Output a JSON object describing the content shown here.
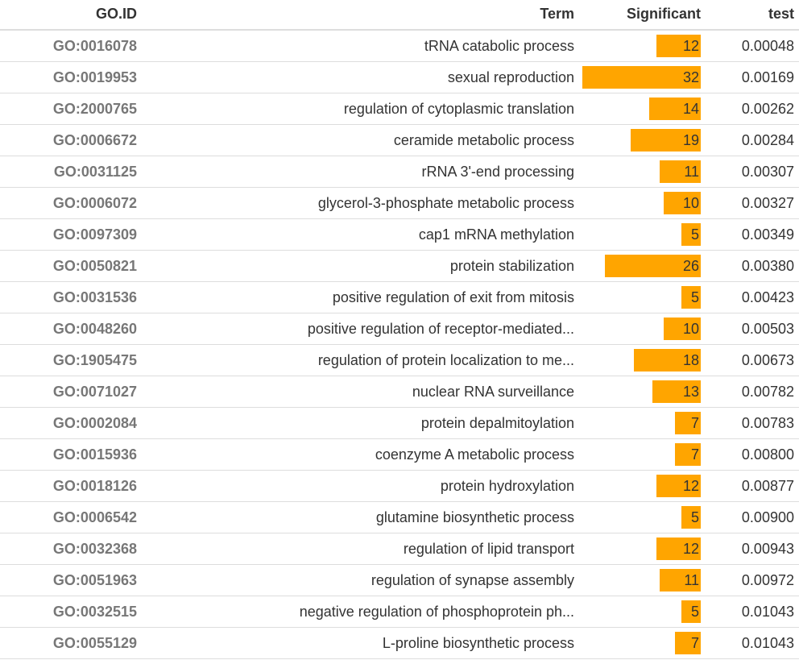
{
  "columns": {
    "goid": "GO.ID",
    "term": "Term",
    "significant": "Significant",
    "test": "test"
  },
  "bar_color": "#ffa500",
  "significant_max": 32,
  "rows": [
    {
      "goid": "GO:0016078",
      "term": "tRNA catabolic process",
      "significant": 12,
      "test": "0.00048"
    },
    {
      "goid": "GO:0019953",
      "term": "sexual reproduction",
      "significant": 32,
      "test": "0.00169"
    },
    {
      "goid": "GO:2000765",
      "term": "regulation of cytoplasmic translation",
      "significant": 14,
      "test": "0.00262"
    },
    {
      "goid": "GO:0006672",
      "term": "ceramide metabolic process",
      "significant": 19,
      "test": "0.00284"
    },
    {
      "goid": "GO:0031125",
      "term": "rRNA 3'-end processing",
      "significant": 11,
      "test": "0.00307"
    },
    {
      "goid": "GO:0006072",
      "term": "glycerol-3-phosphate metabolic process",
      "significant": 10,
      "test": "0.00327"
    },
    {
      "goid": "GO:0097309",
      "term": "cap1 mRNA methylation",
      "significant": 5,
      "test": "0.00349"
    },
    {
      "goid": "GO:0050821",
      "term": "protein stabilization",
      "significant": 26,
      "test": "0.00380"
    },
    {
      "goid": "GO:0031536",
      "term": "positive regulation of exit from mitosis",
      "significant": 5,
      "test": "0.00423"
    },
    {
      "goid": "GO:0048260",
      "term": "positive regulation of receptor-mediated...",
      "significant": 10,
      "test": "0.00503"
    },
    {
      "goid": "GO:1905475",
      "term": "regulation of protein localization to me...",
      "significant": 18,
      "test": "0.00673"
    },
    {
      "goid": "GO:0071027",
      "term": "nuclear RNA surveillance",
      "significant": 13,
      "test": "0.00782"
    },
    {
      "goid": "GO:0002084",
      "term": "protein depalmitoylation",
      "significant": 7,
      "test": "0.00783"
    },
    {
      "goid": "GO:0015936",
      "term": "coenzyme A metabolic process",
      "significant": 7,
      "test": "0.00800"
    },
    {
      "goid": "GO:0018126",
      "term": "protein hydroxylation",
      "significant": 12,
      "test": "0.00877"
    },
    {
      "goid": "GO:0006542",
      "term": "glutamine biosynthetic process",
      "significant": 5,
      "test": "0.00900"
    },
    {
      "goid": "GO:0032368",
      "term": "regulation of lipid transport",
      "significant": 12,
      "test": "0.00943"
    },
    {
      "goid": "GO:0051963",
      "term": "regulation of synapse assembly",
      "significant": 11,
      "test": "0.00972"
    },
    {
      "goid": "GO:0032515",
      "term": "negative regulation of phosphoprotein ph...",
      "significant": 5,
      "test": "0.01043"
    },
    {
      "goid": "GO:0055129",
      "term": "L-proline biosynthetic process",
      "significant": 7,
      "test": "0.01043"
    }
  ]
}
